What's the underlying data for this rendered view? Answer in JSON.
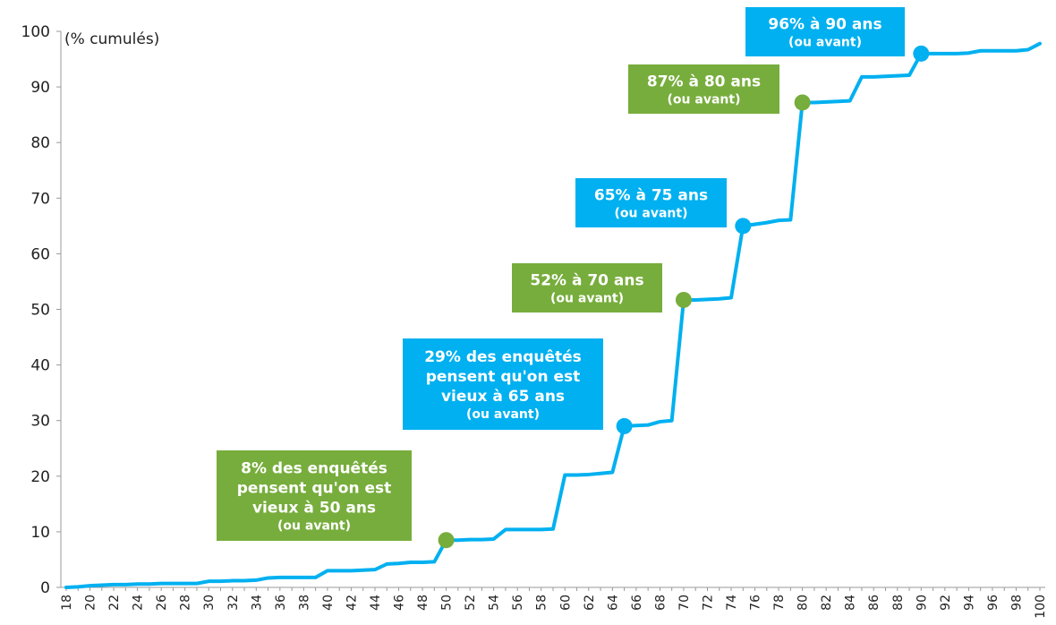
{
  "chart_data": {
    "type": "line",
    "ylabel": "(% cumulés)",
    "xlabel": "",
    "ylim": [
      0,
      100
    ],
    "xlim": [
      18,
      100
    ],
    "y_ticks": [
      0,
      10,
      20,
      30,
      40,
      50,
      60,
      70,
      80,
      90,
      100
    ],
    "x_ticks": [
      18,
      20,
      22,
      24,
      26,
      28,
      30,
      32,
      34,
      36,
      38,
      40,
      42,
      44,
      46,
      48,
      50,
      52,
      54,
      56,
      58,
      60,
      62,
      64,
      66,
      68,
      70,
      72,
      74,
      76,
      78,
      80,
      82,
      84,
      86,
      88,
      90,
      92,
      94,
      96,
      98,
      100
    ],
    "grid": false,
    "colors": {
      "line": "#00B0F0",
      "blue": "#00B0F0",
      "green": "#77AD3C"
    },
    "series": [
      {
        "points": [
          [
            18,
            0
          ],
          [
            19,
            0.1
          ],
          [
            20,
            0.3
          ],
          [
            21,
            0.4
          ],
          [
            22,
            0.5
          ],
          [
            23,
            0.5
          ],
          [
            24,
            0.6
          ],
          [
            25,
            0.6
          ],
          [
            26,
            0.7
          ],
          [
            27,
            0.7
          ],
          [
            28,
            0.7
          ],
          [
            29,
            0.7
          ],
          [
            30,
            1.1
          ],
          [
            31,
            1.1
          ],
          [
            32,
            1.2
          ],
          [
            33,
            1.2
          ],
          [
            34,
            1.3
          ],
          [
            35,
            1.7
          ],
          [
            36,
            1.8
          ],
          [
            37,
            1.8
          ],
          [
            38,
            1.8
          ],
          [
            39,
            1.8
          ],
          [
            40,
            3.0
          ],
          [
            41,
            3.0
          ],
          [
            42,
            3.0
          ],
          [
            43,
            3.1
          ],
          [
            44,
            3.2
          ],
          [
            45,
            4.2
          ],
          [
            46,
            4.3
          ],
          [
            47,
            4.5
          ],
          [
            48,
            4.5
          ],
          [
            49,
            4.6
          ],
          [
            50,
            8.5
          ],
          [
            51,
            8.5
          ],
          [
            52,
            8.6
          ],
          [
            53,
            8.6
          ],
          [
            54,
            8.7
          ],
          [
            55,
            10.4
          ],
          [
            56,
            10.4
          ],
          [
            57,
            10.4
          ],
          [
            58,
            10.4
          ],
          [
            59,
            10.5
          ],
          [
            60,
            20.2
          ],
          [
            61,
            20.2
          ],
          [
            62,
            20.3
          ],
          [
            63,
            20.5
          ],
          [
            64,
            20.7
          ],
          [
            65,
            29.0
          ],
          [
            66,
            29.1
          ],
          [
            67,
            29.2
          ],
          [
            68,
            29.8
          ],
          [
            69,
            30.0
          ],
          [
            70,
            51.7
          ],
          [
            71,
            51.7
          ],
          [
            72,
            51.8
          ],
          [
            73,
            51.9
          ],
          [
            74,
            52.1
          ],
          [
            75,
            65.0
          ],
          [
            76,
            65.3
          ],
          [
            77,
            65.6
          ],
          [
            78,
            66.0
          ],
          [
            79,
            66.1
          ],
          [
            80,
            87.2
          ],
          [
            81,
            87.2
          ],
          [
            82,
            87.3
          ],
          [
            83,
            87.4
          ],
          [
            84,
            87.5
          ],
          [
            85,
            91.8
          ],
          [
            86,
            91.8
          ],
          [
            87,
            91.9
          ],
          [
            88,
            92.0
          ],
          [
            89,
            92.1
          ],
          [
            90,
            96.0
          ],
          [
            91,
            96.0
          ],
          [
            92,
            96.0
          ],
          [
            93,
            96.0
          ],
          [
            94,
            96.1
          ],
          [
            95,
            96.5
          ],
          [
            96,
            96.5
          ],
          [
            97,
            96.5
          ],
          [
            98,
            96.5
          ],
          [
            99,
            96.7
          ],
          [
            100,
            97.8
          ]
        ]
      }
    ],
    "annotations": [
      {
        "x": 50,
        "y": 8.5,
        "color": "green",
        "lines": [
          "8% des enquêtés",
          "pensent qu'on est",
          "vieux à 50 ans"
        ],
        "small": "(ou avant)"
      },
      {
        "x": 65,
        "y": 29.0,
        "color": "blue",
        "lines": [
          "29% des enquêtés",
          "pensent qu'on est",
          "vieux à 65 ans"
        ],
        "small": "(ou avant)"
      },
      {
        "x": 70,
        "y": 51.7,
        "color": "green",
        "lines": [
          "52% à 70 ans"
        ],
        "small": "(ou avant)"
      },
      {
        "x": 75,
        "y": 65.0,
        "color": "blue",
        "lines": [
          "65% à 75 ans"
        ],
        "small": "(ou avant)"
      },
      {
        "x": 80,
        "y": 87.2,
        "color": "green",
        "lines": [
          "87% à 80 ans"
        ],
        "small": "(ou avant)"
      },
      {
        "x": 90,
        "y": 96.0,
        "color": "blue",
        "lines": [
          "96% à 90 ans"
        ],
        "small": "(ou avant)"
      }
    ]
  }
}
